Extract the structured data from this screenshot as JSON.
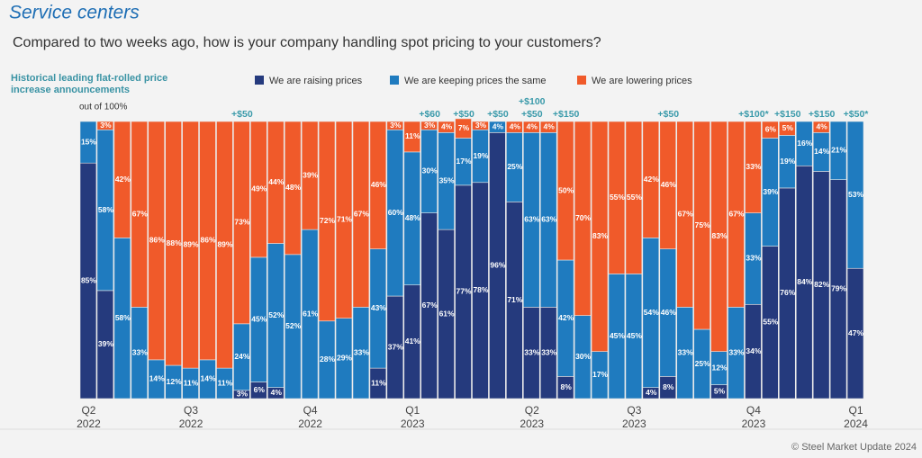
{
  "chart_data": {
    "type": "stacked_bar_100",
    "title": "Service centers",
    "subtitle": "Compared to two weeks ago, how is your company handling spot pricing to your customers?",
    "note": "Historical leading flat-rolled price increase announcements",
    "y_label": "out of 100%",
    "source": "© Steel Market Update 2024",
    "ylim": [
      0,
      100
    ],
    "categories": [
      "Q2 2022",
      null,
      null,
      null,
      null,
      null,
      "Q3 2022",
      null,
      null,
      null,
      null,
      null,
      null,
      "Q4 2022",
      null,
      null,
      null,
      null,
      null,
      "Q1 2023",
      null,
      null,
      null,
      null,
      null,
      null,
      "Q2 2023",
      null,
      null,
      null,
      null,
      null,
      "Q3 2023",
      null,
      null,
      null,
      null,
      null,
      null,
      "Q4 2023",
      null,
      null,
      null,
      null,
      null,
      "Q1 2024"
    ],
    "annotations": [
      null,
      null,
      null,
      null,
      null,
      null,
      null,
      null,
      null,
      [
        "+$50"
      ],
      null,
      null,
      null,
      null,
      null,
      null,
      null,
      null,
      null,
      null,
      [
        "+$60"
      ],
      null,
      [
        "+$50"
      ],
      null,
      [
        "+$50"
      ],
      null,
      [
        "+$50",
        "+$100"
      ],
      null,
      [
        "+$150"
      ],
      null,
      null,
      null,
      null,
      null,
      [
        "+$50"
      ],
      null,
      null,
      null,
      null,
      [
        "+$100*"
      ],
      null,
      [
        "+$150"
      ],
      null,
      [
        "+$150"
      ],
      null,
      [
        "+$50*"
      ]
    ],
    "series": [
      {
        "name": "We are raising prices",
        "color": "#253a7d",
        "values": [
          85,
          39,
          0,
          0,
          0,
          0,
          0,
          0,
          0,
          3,
          6,
          4,
          0,
          0,
          0,
          0,
          0,
          11,
          37,
          41,
          67,
          61,
          77,
          78,
          96,
          71,
          33,
          33,
          8,
          0,
          0,
          0,
          0,
          4,
          8,
          0,
          0,
          5,
          0,
          34,
          55,
          76,
          84,
          82,
          79,
          47
        ],
        "value_labels": [
          "85%",
          "39%",
          null,
          null,
          null,
          null,
          null,
          null,
          null,
          "3%",
          "6%",
          "4%",
          null,
          null,
          null,
          null,
          null,
          "11%",
          "37%",
          "41%",
          "67%",
          "61%",
          "77%",
          "78%",
          "96%",
          "71%",
          "33%",
          "33%",
          "8%",
          null,
          null,
          null,
          null,
          "4%",
          "8%",
          null,
          null,
          "5%",
          null,
          "34%",
          "55%",
          "76%",
          "84%",
          "82%",
          "79%",
          "47%"
        ]
      },
      {
        "name": "We are keeping prices the same",
        "color": "#1f7bbf",
        "values": [
          15,
          58,
          58,
          33,
          14,
          12,
          11,
          14,
          11,
          24,
          45,
          52,
          52,
          61,
          28,
          29,
          33,
          43,
          60,
          48,
          30,
          35,
          17,
          19,
          4,
          25,
          63,
          63,
          42,
          30,
          17,
          45,
          45,
          54,
          46,
          33,
          25,
          12,
          33,
          33,
          39,
          19,
          16,
          14,
          21,
          53
        ],
        "value_labels": [
          "15%",
          "58%",
          "58%",
          "33%",
          "14%",
          "12%",
          "11%",
          "14%",
          "11%",
          "24%",
          "45%",
          "52%",
          "52%",
          "61%",
          "28%",
          "29%",
          "33%",
          "43%",
          "60%",
          "48%",
          "30%",
          "35%",
          "17%",
          "19%",
          "4%",
          "25%",
          "63%",
          "63%",
          "42%",
          "30%",
          "17%",
          "45%",
          "45%",
          "54%",
          "46%",
          "33%",
          "25%",
          "12%",
          "33%",
          "33%",
          "39%",
          "19%",
          "16%",
          "14%",
          "21%",
          "53%"
        ]
      },
      {
        "name": "We are lowering prices",
        "color": "#f05a2a",
        "values": [
          0,
          3,
          42,
          67,
          86,
          88,
          89,
          86,
          89,
          73,
          49,
          44,
          48,
          39,
          72,
          71,
          67,
          46,
          3,
          11,
          3,
          4,
          7,
          3,
          0,
          4,
          4,
          4,
          50,
          70,
          83,
          55,
          55,
          42,
          46,
          67,
          75,
          83,
          67,
          33,
          6,
          5,
          0,
          4,
          0,
          0
        ],
        "value_labels": [
          null,
          "3%",
          "42%",
          "67%",
          "86%",
          "88%",
          "89%",
          "86%",
          "89%",
          "73%",
          "49%",
          "44%",
          "48%",
          "39%",
          "72%",
          "71%",
          "67%",
          "46%",
          "3%",
          "11%",
          "3%",
          "4%",
          "7%",
          "3%",
          null,
          "4%",
          "4%",
          "4%",
          "50%",
          "70%",
          "83%",
          "55%",
          "55%",
          "42%",
          "46%",
          "67%",
          "75%",
          "83%",
          "67%",
          "33%",
          "6%",
          "5%",
          null,
          "4%",
          null,
          null
        ]
      }
    ]
  }
}
